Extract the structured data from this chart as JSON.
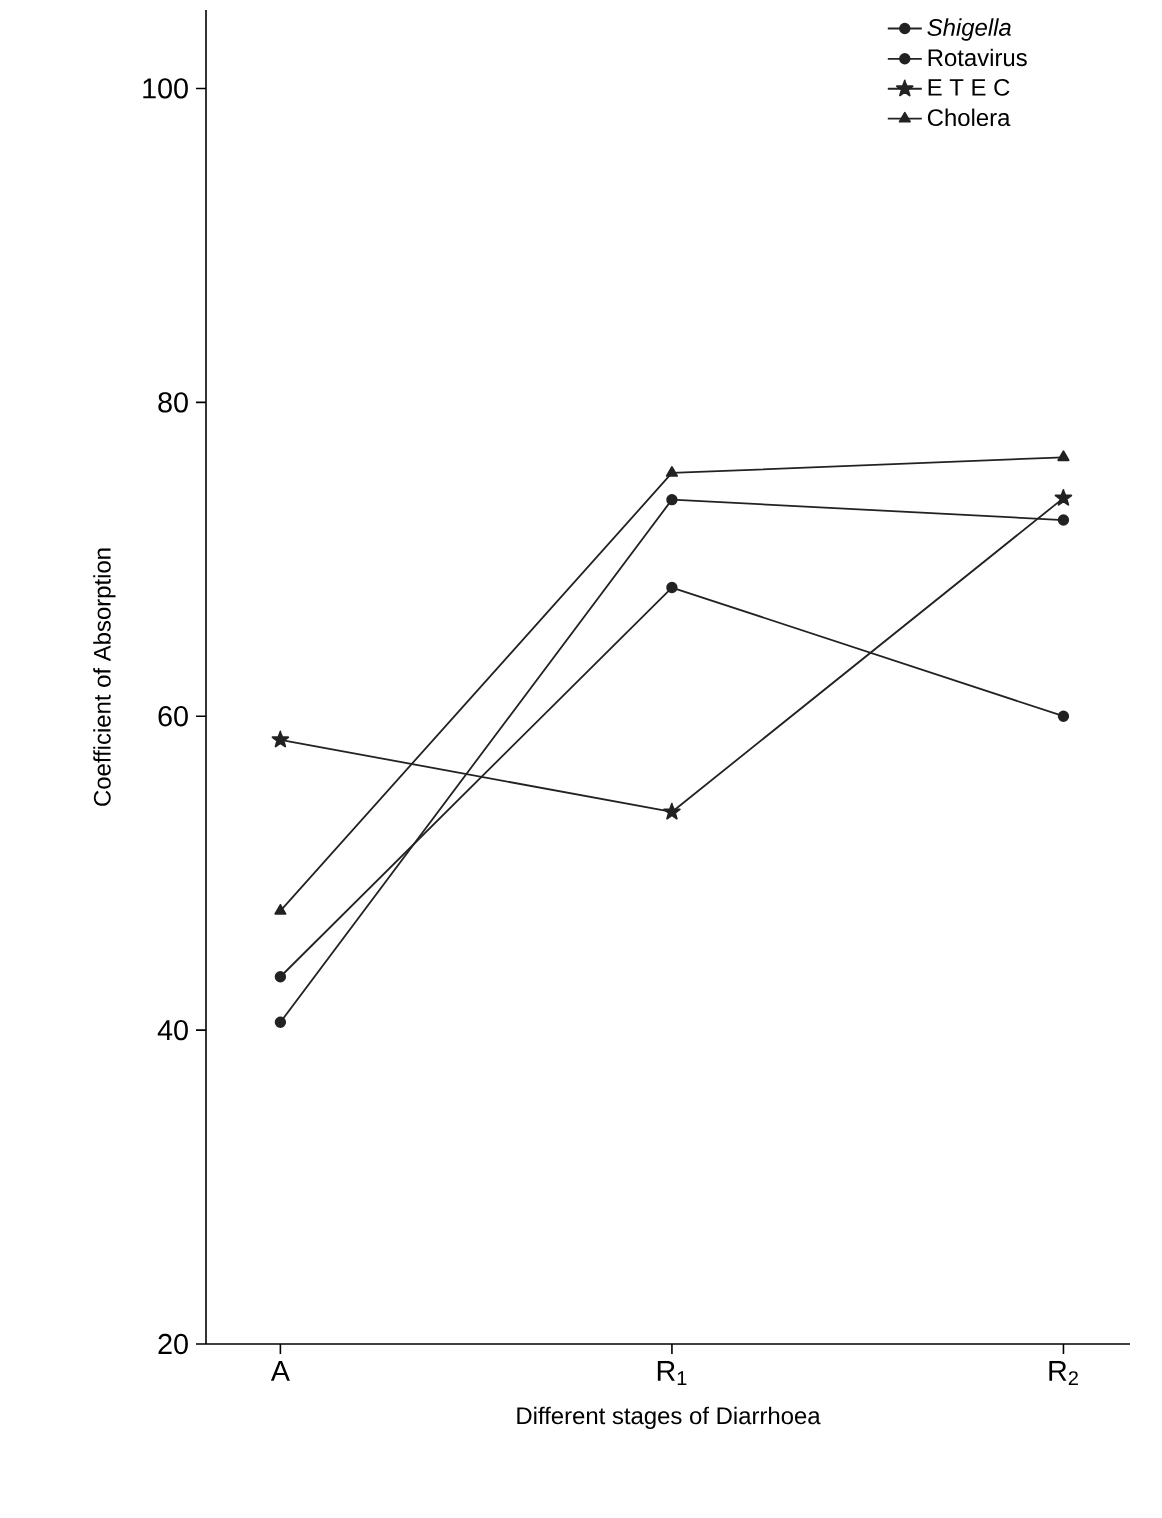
{
  "chart_data": {
    "type": "line",
    "xlabel": "Different stages of Diarrhoea",
    "ylabel": "Coefficient of Absorption",
    "categories": [
      "A",
      "R$_{1}$",
      "R$_{2}$"
    ],
    "series": [
      {
        "name": "*Shigella*",
        "color": "#222222",
        "marker": "circle",
        "values": [
          40.5,
          73.8,
          72.5
        ]
      },
      {
        "name": "Rotavirus",
        "color": "#222222",
        "marker": "circle",
        "values": [
          43.4,
          68.2,
          60.0
        ]
      },
      {
        "name": "E T E C",
        "color": "#222222",
        "marker": "star",
        "values": [
          58.5,
          53.9,
          73.9
        ]
      },
      {
        "name": "Cholera",
        "color": "#222222",
        "marker": "triangle",
        "values": [
          47.6,
          75.5,
          76.5
        ]
      }
    ],
    "ylim": [
      20,
      105
    ],
    "yticks": [
      20,
      40,
      60,
      80,
      100
    ],
    "legend": "top right",
    "grid": false,
    "line_style": "solid"
  }
}
